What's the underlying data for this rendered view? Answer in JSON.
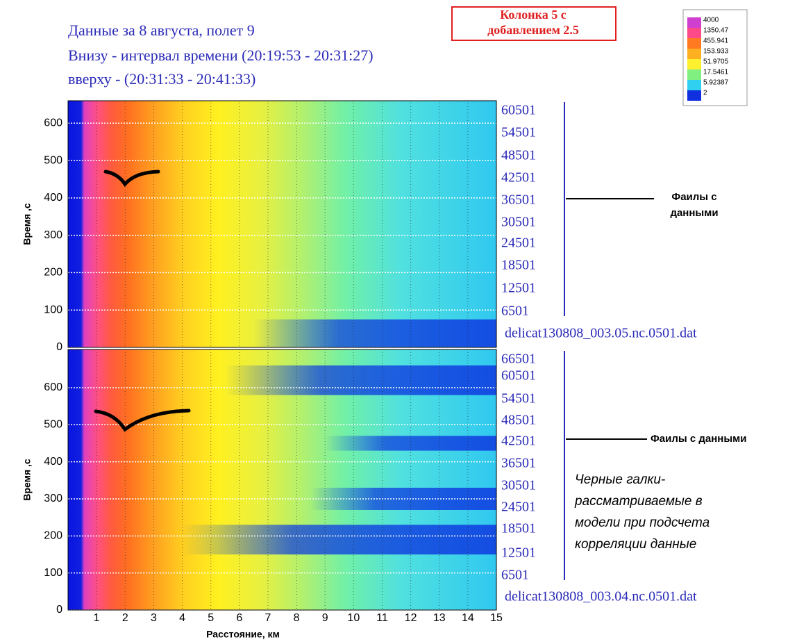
{
  "title_lines": [
    "Данные за 8 августа, полет  9",
    "Внизу - интервал времени (20:19:53  -  20:31:27)",
    "вверху - (20:31:33 - 20:41:33)"
  ],
  "note_box": [
    "Колонка 5 с",
    "добавлением  2.5"
  ],
  "colorbar": {
    "labels": [
      4000,
      1350.47,
      455.941,
      153.933,
      51.9705,
      17.5461,
      5.92387,
      2
    ],
    "colors": [
      "#d040d0",
      "#ff4a8a",
      "#ff7a20",
      "#ffb020",
      "#fff030",
      "#80f080",
      "#30d0f0",
      "#1030e0"
    ]
  },
  "chart_data": [
    {
      "type": "heatmap",
      "ylabel": "Время ,с",
      "xlim": [
        0,
        15
      ],
      "xticks": [
        1,
        2,
        3,
        4,
        5,
        6,
        7,
        8,
        9,
        10,
        11,
        12,
        13,
        14,
        15
      ],
      "ylim": [
        0,
        660
      ],
      "yticks": [
        0,
        100,
        200,
        300,
        400,
        500,
        600
      ],
      "grid": true,
      "files": [
        60501,
        54501,
        48501,
        42501,
        36501,
        30501,
        24501,
        18501,
        12501,
        6501
      ],
      "file_name": "delicat130808_003.05.nc.0501.dat"
    },
    {
      "type": "heatmap",
      "ylabel": "Время ,с",
      "xlabel": "Расстояние, км",
      "xlim": [
        0,
        15
      ],
      "xticks": [
        1,
        2,
        3,
        4,
        5,
        6,
        7,
        8,
        9,
        10,
        11,
        12,
        13,
        14,
        15
      ],
      "ylim": [
        0,
        703
      ],
      "yticks": [
        0,
        100,
        200,
        300,
        400,
        500,
        600
      ],
      "grid": true,
      "files": [
        66501,
        60501,
        54501,
        48501,
        42501,
        36501,
        30501,
        24501,
        18501,
        12501,
        6501
      ],
      "file_name": "delicat130808_003.04.nc.0501.dat"
    }
  ],
  "annotations": {
    "files_top": [
      "Фаилы с",
      "данными"
    ],
    "files_bottom": "Фаилы с данными",
    "note": [
      "Черные галки-",
      "рассматриваемые в",
      "модели при подсчета",
      "корреляции  данные"
    ]
  }
}
